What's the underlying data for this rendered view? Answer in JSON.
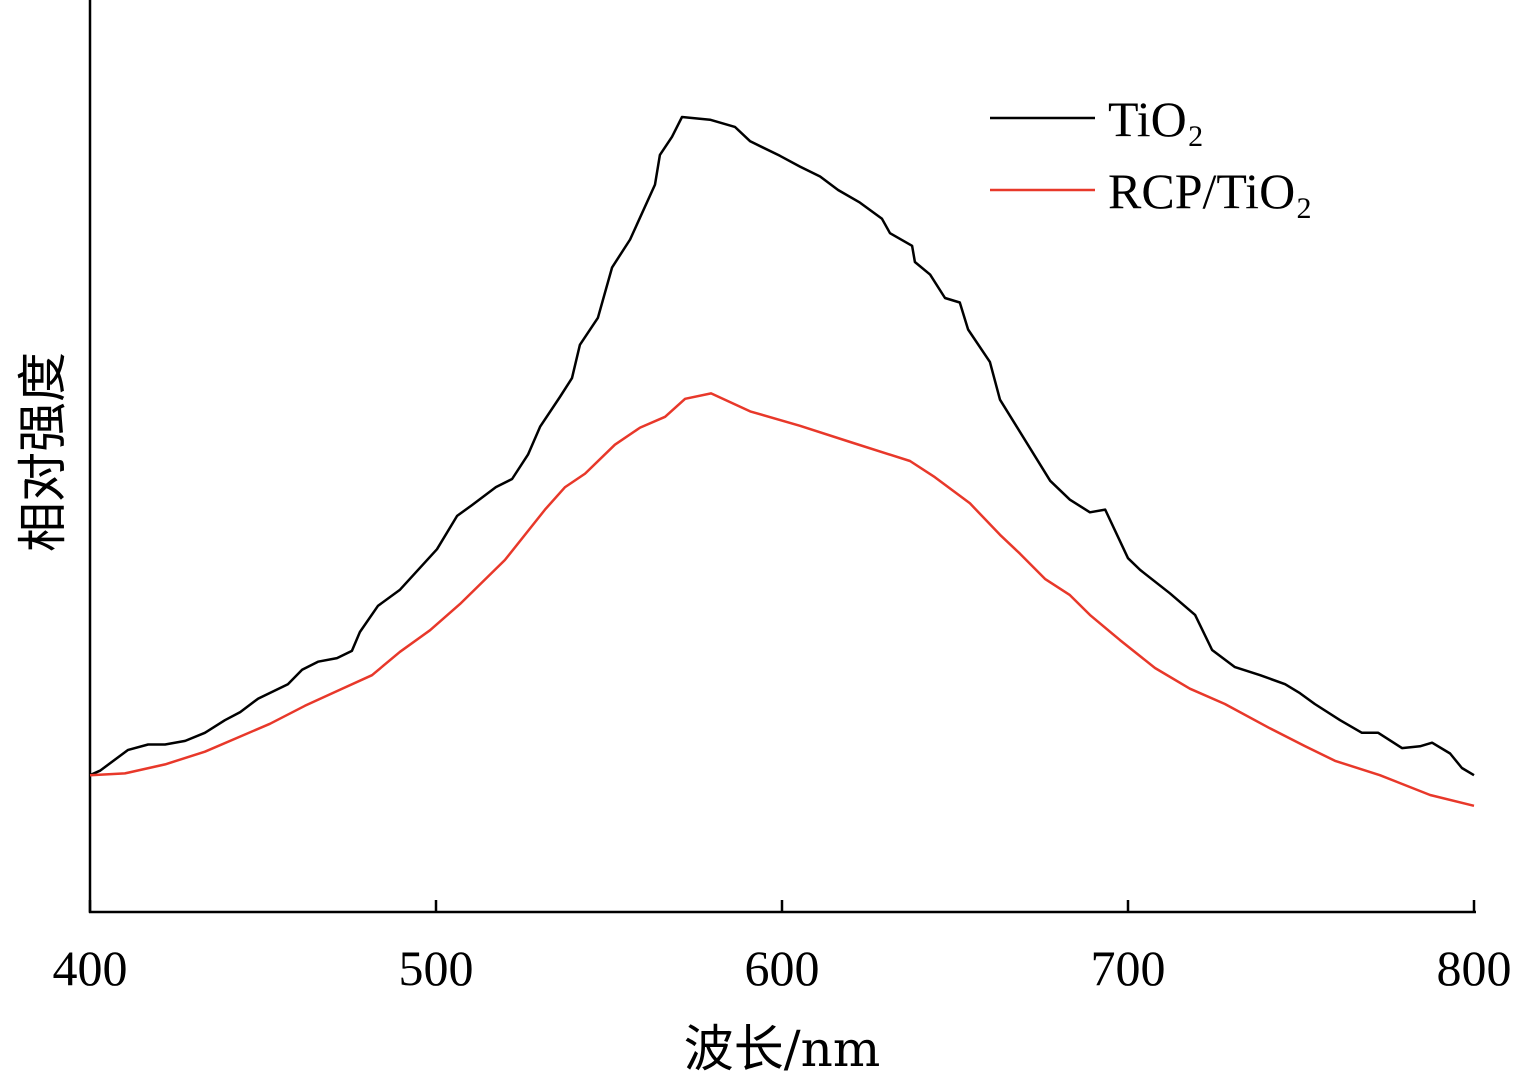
{
  "chart_data": {
    "type": "line",
    "title": "",
    "xlabel": "波长/nm",
    "ylabel": "相对强度",
    "xlim": [
      400,
      800
    ],
    "ylim": [
      0,
      101.3
    ],
    "xticks": [
      400,
      500,
      600,
      700,
      800
    ],
    "xtick_labels": [
      "400",
      "500",
      "600",
      "700",
      "800"
    ],
    "grid": false,
    "legend_position": "top-right",
    "series": [
      {
        "name": "TiO₂",
        "color": "#000000",
        "x": [
          400,
          402.9,
          411.0,
          416.8,
          421.7,
          427.5,
          433.2,
          439.0,
          443.4,
          448.6,
          457.2,
          461.3,
          465.9,
          471.4,
          475.7,
          478.0,
          483.2,
          489.6,
          500.3,
          506.1,
          510.4,
          517.3,
          522.0,
          526.6,
          530.1,
          535.8,
          539.3,
          541.6,
          546.8,
          550.9,
          556.1,
          563.3,
          564.7,
          568.2,
          571.1,
          579.2,
          586.4,
          590.8,
          599.4,
          605.2,
          611.0,
          616.2,
          622.5,
          628.9,
          631.2,
          637.6,
          638.4,
          642.8,
          647.1,
          651.4,
          653.8,
          660.1,
          663.0,
          677.5,
          683.2,
          689.0,
          693.4,
          700.0,
          703.5,
          712.1,
          719.4,
          724.3,
          730.9,
          738.2,
          745.4,
          749.7,
          754.0,
          761.3,
          767.6,
          772.3,
          779.2,
          784.4,
          787.9,
          793.1,
          796.5,
          800
        ],
        "y": [
          15.2,
          15.7,
          18.0,
          18.6,
          18.6,
          19.0,
          19.9,
          21.3,
          22.2,
          23.7,
          25.3,
          26.9,
          27.8,
          28.2,
          29.0,
          31.1,
          34.0,
          35.8,
          40.3,
          44.0,
          45.2,
          47.2,
          48.1,
          50.8,
          53.9,
          57.2,
          59.3,
          63.0,
          66.0,
          71.6,
          74.7,
          80.8,
          84.1,
          86.1,
          88.3,
          88.0,
          87.2,
          85.6,
          84.0,
          82.8,
          81.7,
          80.2,
          78.8,
          77.0,
          75.4,
          74.0,
          72.2,
          70.8,
          68.2,
          67.7,
          64.7,
          61.1,
          56.9,
          47.9,
          45.8,
          44.4,
          44.7,
          39.3,
          38.0,
          35.4,
          33.0,
          29.1,
          27.2,
          26.3,
          25.3,
          24.3,
          23.1,
          21.3,
          19.9,
          19.9,
          18.2,
          18.4,
          18.8,
          17.6,
          16.0,
          15.2
        ]
      },
      {
        "name": "RCP/TiO₂",
        "color": "#e8382a",
        "x": [
          400,
          410.1,
          421.7,
          433.2,
          452.0,
          462.1,
          472.3,
          481.5,
          489.6,
          498.3,
          506.9,
          519.9,
          531.5,
          537.3,
          543.1,
          551.7,
          559.0,
          566.2,
          572.0,
          579.5,
          590.8,
          605.2,
          619.7,
          637.0,
          644.2,
          654.3,
          663.0,
          668.8,
          676.0,
          683.2,
          689.0,
          697.7,
          707.8,
          717.9,
          728.0,
          741.0,
          751.2,
          759.8,
          772.8,
          787.3,
          800
        ],
        "y": [
          15.2,
          15.4,
          16.4,
          17.8,
          20.9,
          22.9,
          24.7,
          26.3,
          28.9,
          31.3,
          34.2,
          39.1,
          44.7,
          47.2,
          48.7,
          51.9,
          53.8,
          55.0,
          57.0,
          57.6,
          55.6,
          54.0,
          52.2,
          50.1,
          48.3,
          45.4,
          41.9,
          39.8,
          37.0,
          35.2,
          33.0,
          30.2,
          27.1,
          24.8,
          23.1,
          20.4,
          18.4,
          16.8,
          15.2,
          13.0,
          11.8
        ]
      }
    ]
  }
}
